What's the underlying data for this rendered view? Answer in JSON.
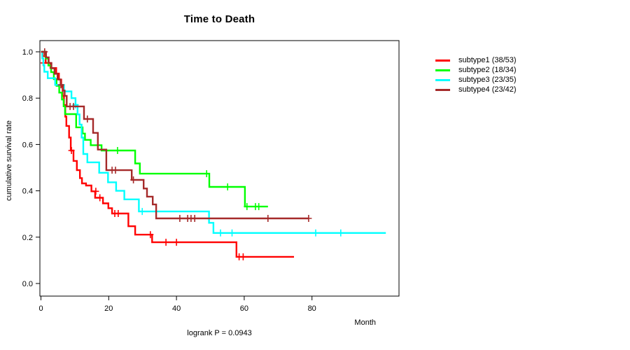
{
  "chart_data": {
    "type": "line",
    "variant": "kaplan-meier-step",
    "title": "Time to Death",
    "xlabel": "Month",
    "ylabel": "cumulative survival rate",
    "annotation": "logrank P = 0.0943",
    "xlim": [
      0,
      105.7
    ],
    "ylim": [
      0,
      1
    ],
    "grid": false,
    "legend_position": "right-outside",
    "xticks": [
      {
        "label": "0",
        "value": 0
      },
      {
        "label": "20",
        "value": 20
      },
      {
        "label": "40",
        "value": 40
      },
      {
        "label": "60",
        "value": 60
      },
      {
        "label": "80",
        "value": 80
      }
    ],
    "yticks": [
      {
        "label": "0.0",
        "value": 0.0
      },
      {
        "label": "0.2",
        "value": 0.2
      },
      {
        "label": "0.4",
        "value": 0.4
      },
      {
        "label": "0.6",
        "value": 0.6
      },
      {
        "label": "0.8",
        "value": 0.8
      },
      {
        "label": "1.0",
        "value": 1.0
      }
    ],
    "series": [
      {
        "name": "subtype1 (38/53)",
        "color": "#FF0000",
        "end": 74.7,
        "steps": [
          [
            0,
            1.0
          ],
          [
            0.6,
            0.981
          ],
          [
            1.4,
            0.952
          ],
          [
            2.8,
            0.93
          ],
          [
            4.5,
            0.906
          ],
          [
            5.3,
            0.88
          ],
          [
            6.0,
            0.85
          ],
          [
            6.4,
            0.81
          ],
          [
            6.8,
            0.77
          ],
          [
            7.2,
            0.72
          ],
          [
            7.5,
            0.68
          ],
          [
            8.3,
            0.63
          ],
          [
            8.8,
            0.574
          ],
          [
            9.6,
            0.529
          ],
          [
            10.6,
            0.489
          ],
          [
            11.5,
            0.455
          ],
          [
            12.1,
            0.432
          ],
          [
            13.3,
            0.423
          ],
          [
            14.9,
            0.398
          ],
          [
            16.0,
            0.37
          ],
          [
            18.3,
            0.346
          ],
          [
            19.9,
            0.325
          ],
          [
            21.0,
            0.302
          ],
          [
            25.8,
            0.247
          ],
          [
            27.8,
            0.211
          ],
          [
            32.8,
            0.178
          ],
          [
            57.7,
            0.115
          ]
        ],
        "censors": [
          [
            0.8,
            0.952
          ],
          [
            9.0,
            0.574
          ],
          [
            16.2,
            0.398
          ],
          [
            17.4,
            0.37
          ],
          [
            21.8,
            0.302
          ],
          [
            22.8,
            0.302
          ],
          [
            32.3,
            0.211
          ],
          [
            36.9,
            0.178
          ],
          [
            40.0,
            0.178
          ],
          [
            58.5,
            0.115
          ],
          [
            59.7,
            0.115
          ]
        ]
      },
      {
        "name": "subtype2 (18/34)",
        "color": "#00FF00",
        "end": 67.0,
        "steps": [
          [
            0,
            1.0
          ],
          [
            1.4,
            0.971
          ],
          [
            2.2,
            0.941
          ],
          [
            3.0,
            0.912
          ],
          [
            3.8,
            0.882
          ],
          [
            4.6,
            0.853
          ],
          [
            5.4,
            0.824
          ],
          [
            6.2,
            0.794
          ],
          [
            6.7,
            0.765
          ],
          [
            7.1,
            0.731
          ],
          [
            10.4,
            0.674
          ],
          [
            12.3,
            0.647
          ],
          [
            13.0,
            0.62
          ],
          [
            14.7,
            0.597
          ],
          [
            17.9,
            0.574
          ],
          [
            27.8,
            0.518
          ],
          [
            29.2,
            0.474
          ],
          [
            49.7,
            0.417
          ],
          [
            60.2,
            0.332
          ]
        ],
        "censors": [
          [
            22.6,
            0.574
          ],
          [
            48.9,
            0.474
          ],
          [
            55.1,
            0.417
          ],
          [
            60.8,
            0.332
          ],
          [
            63.3,
            0.332
          ],
          [
            64.3,
            0.332
          ]
        ]
      },
      {
        "name": "subtype3 (23/35)",
        "color": "#00FFFF",
        "end": 101.8,
        "steps": [
          [
            0,
            1.0
          ],
          [
            0.4,
            0.971
          ],
          [
            0.7,
            0.943
          ],
          [
            1.0,
            0.914
          ],
          [
            2.0,
            0.886
          ],
          [
            4.2,
            0.857
          ],
          [
            6.8,
            0.829
          ],
          [
            9.0,
            0.8
          ],
          [
            10.2,
            0.771
          ],
          [
            10.8,
            0.73
          ],
          [
            11.4,
            0.686
          ],
          [
            12.0,
            0.63
          ],
          [
            12.5,
            0.559
          ],
          [
            13.7,
            0.523
          ],
          [
            17.2,
            0.478
          ],
          [
            19.8,
            0.437
          ],
          [
            22.2,
            0.4
          ],
          [
            24.6,
            0.363
          ],
          [
            28.9,
            0.311
          ],
          [
            49.6,
            0.262
          ],
          [
            50.9,
            0.218
          ]
        ],
        "censors": [
          [
            10.2,
            0.771
          ],
          [
            29.9,
            0.311
          ],
          [
            53.0,
            0.218
          ],
          [
            56.4,
            0.218
          ],
          [
            81.1,
            0.218
          ],
          [
            88.5,
            0.218
          ]
        ]
      },
      {
        "name": "subtype4 (23/42)",
        "color": "#A52A2A",
        "end": 79.0,
        "steps": [
          [
            0,
            1.0
          ],
          [
            1.5,
            0.976
          ],
          [
            2.3,
            0.952
          ],
          [
            3.1,
            0.929
          ],
          [
            4.0,
            0.905
          ],
          [
            4.9,
            0.881
          ],
          [
            5.8,
            0.857
          ],
          [
            6.5,
            0.833
          ],
          [
            7.0,
            0.81
          ],
          [
            7.6,
            0.764
          ],
          [
            12.7,
            0.71
          ],
          [
            15.4,
            0.65
          ],
          [
            16.8,
            0.578
          ],
          [
            19.3,
            0.489
          ],
          [
            26.8,
            0.447
          ],
          [
            30.3,
            0.41
          ],
          [
            31.3,
            0.375
          ],
          [
            33.0,
            0.341
          ],
          [
            34.0,
            0.281
          ]
        ],
        "censors": [
          [
            1.1,
            1.0
          ],
          [
            5.9,
            0.857
          ],
          [
            8.6,
            0.764
          ],
          [
            9.6,
            0.764
          ],
          [
            13.7,
            0.71
          ],
          [
            21.0,
            0.489
          ],
          [
            22.0,
            0.489
          ],
          [
            27.3,
            0.447
          ],
          [
            41.0,
            0.281
          ],
          [
            43.3,
            0.281
          ],
          [
            44.3,
            0.281
          ],
          [
            45.4,
            0.281
          ],
          [
            67.0,
            0.281
          ],
          [
            79.0,
            0.281
          ]
        ]
      }
    ]
  }
}
